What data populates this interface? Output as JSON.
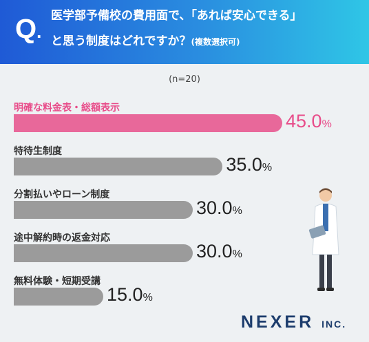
{
  "header": {
    "q_letter": "Q",
    "q_dot": ".",
    "line1": "医学部予備校の費用面で、「あれば安心できる」",
    "line2": "と思う制度はどれですか？",
    "note": "(複数選択可)"
  },
  "sample_note": "(n=20)",
  "colors": {
    "highlight": "#e8689a",
    "bar": "#9b9b9b",
    "header_start": "#1f5ad6",
    "header_end": "#2fc6e6"
  },
  "chart_data": {
    "type": "bar",
    "orientation": "horizontal",
    "categories": [
      "明確な料金表・総額表示",
      "特待生制度",
      "分割払いやローン制度",
      "途中解約時の返金対応",
      "無料体験・短期受講"
    ],
    "values": [
      45.0,
      35.0,
      30.0,
      30.0,
      15.0
    ],
    "value_labels": [
      "45.0",
      "35.0",
      "30.0",
      "30.0",
      "15.0"
    ],
    "unit": "%",
    "highlight_index": 0,
    "xlim": [
      0,
      100
    ]
  },
  "logo": {
    "name": "NEXER",
    "suffix": "INC."
  },
  "illustration": {
    "icon": "doctor-illustration"
  }
}
